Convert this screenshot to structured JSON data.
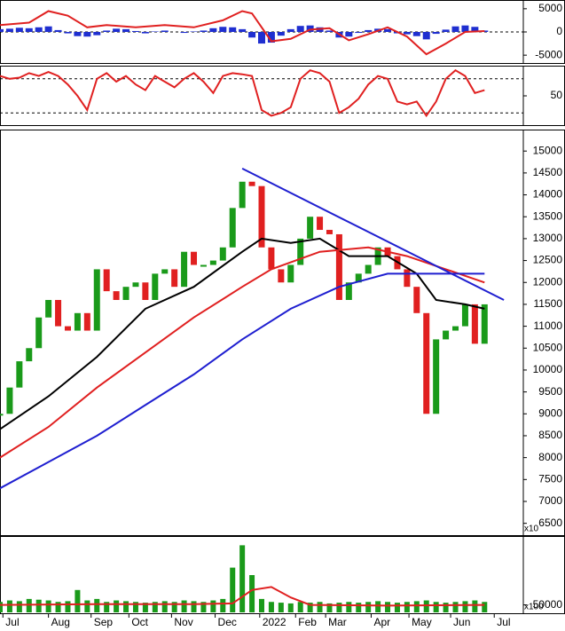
{
  "chart_data": [
    {
      "type": "macd",
      "xlim": [
        0,
        54
      ],
      "ylim": [
        -6500,
        6500
      ],
      "yticks": [
        5000,
        0,
        -5000
      ],
      "levels": [
        0
      ],
      "histogram": {
        "color": "#1f2fd0",
        "x": [
          0,
          1,
          2,
          3,
          4,
          5,
          6,
          7,
          8,
          9,
          10,
          11,
          12,
          13,
          14,
          15,
          16,
          17,
          18,
          19,
          20,
          21,
          22,
          23,
          24,
          25,
          26,
          27,
          28,
          29,
          30,
          31,
          32,
          33,
          34,
          35,
          36,
          37,
          38,
          39,
          40,
          41,
          42,
          43,
          44,
          45,
          46,
          47,
          48,
          49,
          50
        ],
        "values": [
          600,
          700,
          900,
          800,
          1000,
          1200,
          400,
          -300,
          -900,
          -1000,
          -700,
          300,
          700,
          600,
          200,
          -300,
          100,
          300,
          0,
          -200,
          100,
          300,
          800,
          1100,
          1000,
          600,
          -1200,
          -2500,
          -2300,
          -800,
          600,
          1300,
          1400,
          1000,
          300,
          -1200,
          -1000,
          -200,
          400,
          700,
          600,
          -300,
          -500,
          -900,
          -1600,
          -400,
          500,
          1200,
          1400,
          1100,
          300
        ]
      },
      "lines": [
        {
          "color": "#e02020",
          "x": [
            0,
            3,
            5,
            7,
            9,
            11,
            14,
            17,
            20,
            23,
            25,
            26,
            28,
            30,
            32,
            34,
            36,
            38,
            40,
            42,
            44,
            46,
            48,
            50
          ],
          "values": [
            1500,
            2000,
            4500,
            3500,
            1000,
            1500,
            1000,
            1500,
            1000,
            2500,
            4500,
            4000,
            -2000,
            -1500,
            500,
            800,
            -1800,
            -500,
            1000,
            -1000,
            -4800,
            -2500,
            0,
            200
          ]
        }
      ]
    },
    {
      "type": "oscillator",
      "xlim": [
        0,
        54
      ],
      "ylim": [
        0,
        100
      ],
      "yticks": [
        50
      ],
      "levels": [
        20,
        80
      ],
      "lines": [
        {
          "color": "#e02020",
          "x": [
            0,
            1,
            2,
            3,
            4,
            5,
            6,
            7,
            8,
            9,
            10,
            11,
            12,
            13,
            14,
            15,
            16,
            17,
            18,
            19,
            20,
            21,
            22,
            23,
            24,
            25,
            26,
            27,
            28,
            29,
            30,
            31,
            32,
            33,
            34,
            35,
            36,
            37,
            38,
            39,
            40,
            41,
            42,
            43,
            44,
            45,
            46,
            47,
            48,
            49,
            50
          ],
          "values": [
            85,
            80,
            82,
            90,
            85,
            92,
            85,
            70,
            50,
            25,
            80,
            90,
            75,
            85,
            70,
            60,
            85,
            75,
            65,
            80,
            90,
            75,
            55,
            85,
            90,
            88,
            85,
            25,
            15,
            20,
            30,
            80,
            95,
            90,
            75,
            20,
            30,
            45,
            70,
            85,
            80,
            40,
            35,
            40,
            15,
            40,
            80,
            95,
            85,
            55,
            60
          ]
        }
      ]
    },
    {
      "type": "candlestick",
      "xlim": [
        0,
        54
      ],
      "ylim": [
        6250,
        15450
      ],
      "yticks": [
        6500,
        7000,
        7500,
        8000,
        8500,
        9000,
        9500,
        10000,
        10500,
        11000,
        11500,
        12000,
        12500,
        13000,
        13500,
        14000,
        14500,
        15000
      ],
      "unit_label": "x10",
      "up_color": "#1a9a1a",
      "down_color": "#e02020",
      "candles": {
        "x": [
          0,
          1,
          2,
          3,
          4,
          5,
          6,
          7,
          8,
          9,
          10,
          11,
          12,
          13,
          14,
          15,
          16,
          17,
          18,
          19,
          20,
          21,
          22,
          23,
          24,
          25,
          26,
          27,
          28,
          29,
          30,
          31,
          32,
          33,
          34,
          35,
          36,
          37,
          38,
          39,
          40,
          41,
          42,
          43,
          44,
          45,
          46,
          47,
          48,
          49,
          50
        ],
        "values": [
          9000,
          9600,
          10200,
          10500,
          11200,
          11600,
          11000,
          10900,
          11300,
          10900,
          12300,
          11800,
          11600,
          11900,
          12000,
          11600,
          12200,
          12300,
          11900,
          12700,
          12400,
          12400,
          12500,
          12800,
          13700,
          14300,
          14200,
          12800,
          12300,
          12000,
          12400,
          13000,
          13500,
          13200,
          13100,
          11600,
          12000,
          12200,
          12400,
          12800,
          12600,
          12300,
          11900,
          11300,
          9000,
          10700,
          10900,
          11000,
          11500,
          10600,
          11500
        ]
      },
      "lines": [
        {
          "color": "#000000",
          "x": [
            0,
            5,
            10,
            15,
            20,
            25,
            27,
            30,
            33,
            36,
            40,
            43,
            45,
            48,
            50
          ],
          "values": [
            8650,
            9400,
            10300,
            11400,
            11900,
            12700,
            13000,
            12900,
            13000,
            12600,
            12600,
            12200,
            11600,
            11500,
            11400
          ]
        },
        {
          "color": "#e02020",
          "x": [
            0,
            5,
            10,
            15,
            20,
            25,
            28,
            33,
            38,
            42,
            46,
            50
          ],
          "values": [
            8000,
            8700,
            9600,
            10400,
            11200,
            11900,
            12300,
            12700,
            12800,
            12600,
            12300,
            12000
          ]
        },
        {
          "color": "#1f1fd0",
          "x": [
            0,
            5,
            10,
            15,
            20,
            25,
            30,
            35,
            40,
            45,
            50
          ],
          "values": [
            7300,
            7900,
            8500,
            9200,
            9900,
            10700,
            11400,
            11900,
            12200,
            12200,
            12200
          ]
        },
        {
          "color": "#1f1fd0",
          "x": [
            25,
            52
          ],
          "values": [
            14600,
            11600
          ]
        }
      ]
    },
    {
      "type": "volume",
      "xlim": [
        0,
        54
      ],
      "ylim": [
        0,
        500000
      ],
      "yticks": [
        50000
      ],
      "unit_label": "x100",
      "color": "#1a9a1a",
      "x": [
        0,
        1,
        2,
        3,
        4,
        5,
        6,
        7,
        8,
        9,
        10,
        11,
        12,
        13,
        14,
        15,
        16,
        17,
        18,
        19,
        20,
        21,
        22,
        23,
        24,
        25,
        26,
        27,
        28,
        29,
        30,
        31,
        32,
        33,
        34,
        35,
        36,
        37,
        38,
        39,
        40,
        41,
        42,
        43,
        44,
        45,
        46,
        47,
        48,
        49,
        50
      ],
      "values": [
        70000,
        80000,
        75000,
        90000,
        85000,
        80000,
        70000,
        75000,
        150000,
        80000,
        90000,
        70000,
        80000,
        75000,
        70000,
        65000,
        70000,
        75000,
        70000,
        80000,
        75000,
        70000,
        80000,
        90000,
        300000,
        450000,
        250000,
        90000,
        70000,
        65000,
        60000,
        70000,
        65000,
        70000,
        60000,
        65000,
        70000,
        65000,
        70000,
        75000,
        70000,
        65000,
        70000,
        75000,
        80000,
        70000,
        65000,
        70000,
        75000,
        80000,
        70000
      ],
      "lines": [
        {
          "color": "#e02020",
          "x": [
            0,
            10,
            20,
            24,
            26,
            28,
            30,
            32,
            40,
            50
          ],
          "values": [
            50000,
            55000,
            55000,
            60000,
            150000,
            170000,
            100000,
            50000,
            45000,
            50000
          ]
        }
      ],
      "xticks": [
        {
          "value": 0.3,
          "label": "Jul"
        },
        {
          "value": 5,
          "label": "Aug"
        },
        {
          "value": 9.4,
          "label": "Sep"
        },
        {
          "value": 13.3,
          "label": "Oct"
        },
        {
          "value": 17.7,
          "label": "Nov"
        },
        {
          "value": 22.2,
          "label": "Dec"
        },
        {
          "value": 26.8,
          "label": "2022"
        },
        {
          "value": 30.5,
          "label": "Feb"
        },
        {
          "value": 33.6,
          "label": "Mar"
        },
        {
          "value": 38.3,
          "label": "Apr"
        },
        {
          "value": 42.2,
          "label": "May"
        },
        {
          "value": 46.5,
          "label": "Jun"
        },
        {
          "value": 51,
          "label": "Jul"
        }
      ]
    }
  ]
}
